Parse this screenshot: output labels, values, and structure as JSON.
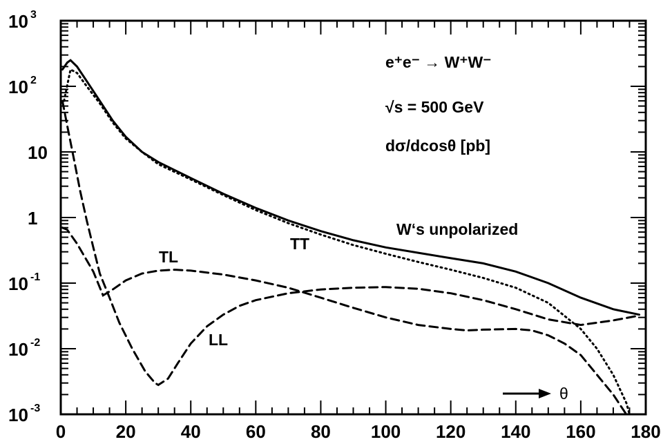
{
  "chart_data": {
    "type": "line",
    "title": "",
    "xlabel": "",
    "ylabel": "",
    "xlim": [
      0,
      180
    ],
    "ylim": [
      0.001,
      1000
    ],
    "yscale": "log",
    "x_ticks": [
      {
        "value": 0,
        "label": "0"
      },
      {
        "value": 20,
        "label": "20"
      },
      {
        "value": 40,
        "label": "40"
      },
      {
        "value": 60,
        "label": "60"
      },
      {
        "value": 80,
        "label": "80"
      },
      {
        "value": 100,
        "label": "100"
      },
      {
        "value": 120,
        "label": "120"
      },
      {
        "value": 140,
        "label": "140"
      },
      {
        "value": 160,
        "label": "160"
      },
      {
        "value": 180,
        "label": "180"
      }
    ],
    "y_ticks": [
      {
        "value": 1000,
        "base": "10",
        "exp": "3"
      },
      {
        "value": 100,
        "base": "10",
        "exp": "2"
      },
      {
        "value": 10,
        "base": "10",
        "exp": ""
      },
      {
        "value": 1,
        "base": "1",
        "exp": ""
      },
      {
        "value": 0.1,
        "base": "10",
        "exp": "-1"
      },
      {
        "value": 0.01,
        "base": "10",
        "exp": "-2"
      },
      {
        "value": 0.001,
        "base": "10",
        "exp": "-3"
      }
    ],
    "legend_text": {
      "process": "e⁺e⁻ → W⁺W⁻",
      "energy": "√s = 500 GeV",
      "quantity": "dσ/dcosθ [pb]",
      "arrow_label": "θ"
    },
    "series": [
      {
        "name": "W's unpolarized",
        "style": "solid",
        "points": [
          [
            0.5,
            180
          ],
          [
            2,
            230
          ],
          [
            3,
            250
          ],
          [
            5,
            200
          ],
          [
            8,
            120
          ],
          [
            12,
            60
          ],
          [
            16,
            30
          ],
          [
            20,
            17
          ],
          [
            25,
            10
          ],
          [
            30,
            7
          ],
          [
            40,
            4
          ],
          [
            50,
            2.3
          ],
          [
            60,
            1.4
          ],
          [
            70,
            0.9
          ],
          [
            80,
            0.62
          ],
          [
            90,
            0.45
          ],
          [
            100,
            0.35
          ],
          [
            110,
            0.29
          ],
          [
            120,
            0.24
          ],
          [
            130,
            0.2
          ],
          [
            140,
            0.15
          ],
          [
            150,
            0.1
          ],
          [
            160,
            0.06
          ],
          [
            170,
            0.04
          ],
          [
            178,
            0.033
          ]
        ]
      },
      {
        "name": "TT",
        "style": "dotted",
        "points": [
          [
            1,
            60
          ],
          [
            3,
            180
          ],
          [
            5,
            160
          ],
          [
            8,
            100
          ],
          [
            12,
            55
          ],
          [
            16,
            28
          ],
          [
            20,
            16
          ],
          [
            25,
            10
          ],
          [
            30,
            6.5
          ],
          [
            40,
            3.8
          ],
          [
            50,
            2.2
          ],
          [
            60,
            1.3
          ],
          [
            70,
            0.82
          ],
          [
            80,
            0.55
          ],
          [
            90,
            0.38
          ],
          [
            100,
            0.28
          ],
          [
            110,
            0.21
          ],
          [
            120,
            0.16
          ],
          [
            130,
            0.12
          ],
          [
            140,
            0.085
          ],
          [
            150,
            0.05
          ],
          [
            160,
            0.02
          ],
          [
            165,
            0.01
          ],
          [
            170,
            0.004
          ],
          [
            174,
            0.0015
          ],
          [
            175,
            0.001
          ]
        ]
      },
      {
        "name": "TL",
        "style": "dashed",
        "points": [
          [
            0.5,
            0.7
          ],
          [
            2,
            0.65
          ],
          [
            5,
            0.4
          ],
          [
            10,
            0.15
          ],
          [
            13,
            0.065
          ],
          [
            16,
            0.08
          ],
          [
            20,
            0.11
          ],
          [
            25,
            0.14
          ],
          [
            30,
            0.155
          ],
          [
            35,
            0.16
          ],
          [
            40,
            0.155
          ],
          [
            50,
            0.135
          ],
          [
            60,
            0.11
          ],
          [
            70,
            0.085
          ],
          [
            80,
            0.06
          ],
          [
            90,
            0.042
          ],
          [
            100,
            0.03
          ],
          [
            110,
            0.023
          ],
          [
            120,
            0.02
          ],
          [
            125,
            0.019
          ],
          [
            130,
            0.0195
          ],
          [
            140,
            0.02
          ],
          [
            145,
            0.019
          ],
          [
            150,
            0.016
          ],
          [
            155,
            0.012
          ],
          [
            160,
            0.008
          ],
          [
            165,
            0.004
          ],
          [
            170,
            0.002
          ],
          [
            174,
            0.001
          ]
        ]
      },
      {
        "name": "LL",
        "style": "dashed",
        "points": [
          [
            0.5,
            60
          ],
          [
            2,
            25
          ],
          [
            4,
            8
          ],
          [
            6,
            2.5
          ],
          [
            8,
            0.9
          ],
          [
            10,
            0.35
          ],
          [
            12,
            0.14
          ],
          [
            15,
            0.06
          ],
          [
            18,
            0.025
          ],
          [
            22,
            0.01
          ],
          [
            26,
            0.0045
          ],
          [
            29,
            0.003
          ],
          [
            30,
            0.0028
          ],
          [
            33,
            0.0035
          ],
          [
            36,
            0.006
          ],
          [
            40,
            0.012
          ],
          [
            45,
            0.022
          ],
          [
            50,
            0.033
          ],
          [
            55,
            0.045
          ],
          [
            60,
            0.055
          ],
          [
            70,
            0.07
          ],
          [
            80,
            0.08
          ],
          [
            90,
            0.085
          ],
          [
            100,
            0.087
          ],
          [
            110,
            0.082
          ],
          [
            120,
            0.07
          ],
          [
            130,
            0.055
          ],
          [
            140,
            0.04
          ],
          [
            150,
            0.028
          ],
          [
            160,
            0.023
          ],
          [
            170,
            0.027
          ],
          [
            178,
            0.032
          ]
        ]
      }
    ],
    "curve_labels": [
      {
        "text": "W‘s unpolarized",
        "series": "W's unpolarized"
      },
      {
        "text": "TT",
        "series": "TT"
      },
      {
        "text": "TL",
        "series": "TL"
      },
      {
        "text": "LL",
        "series": "LL"
      }
    ]
  }
}
